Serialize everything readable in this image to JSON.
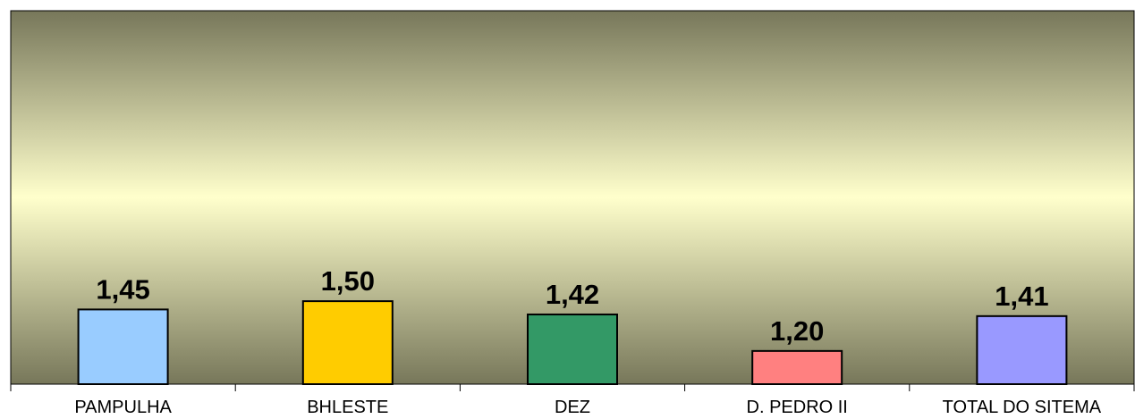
{
  "chart_data": {
    "type": "bar",
    "categories": [
      "PAMPULHA",
      "BHLESTE",
      "DEZ",
      "D. PEDRO II",
      "TOTAL DO SITEMA"
    ],
    "values": [
      1.45,
      1.5,
      1.42,
      1.2,
      1.41
    ],
    "value_labels": [
      "1,45",
      "1,50",
      "1,42",
      "1,20",
      "1,41"
    ],
    "colors": [
      "#99ccff",
      "#ffcc00",
      "#339966",
      "#ff8080",
      "#9999ff"
    ],
    "ylim": [
      1,
      3.25
    ]
  }
}
